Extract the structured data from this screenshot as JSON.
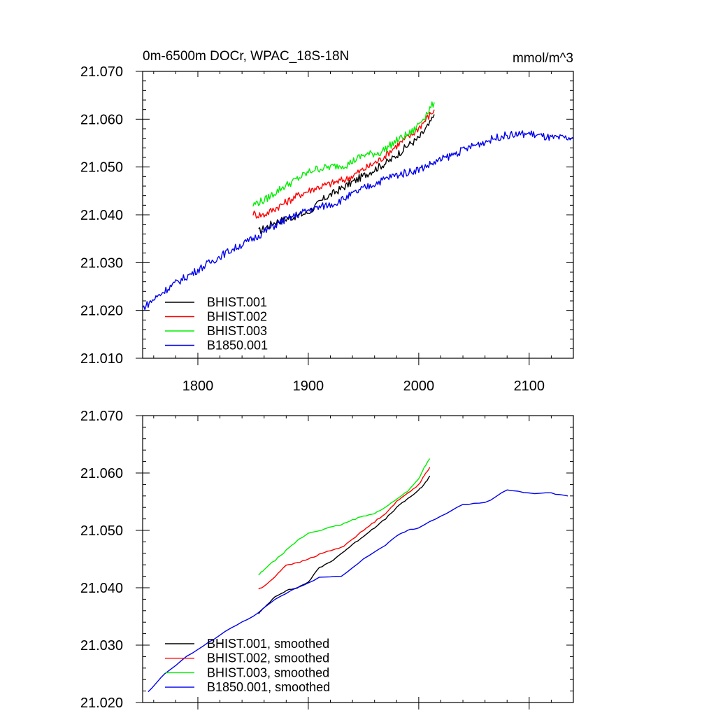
{
  "colors": {
    "BHIST.001": "#000000",
    "BHIST.002": "#ff0000",
    "BHIST.003": "#00ee00",
    "B1850.001": "#0000ee"
  },
  "chart_data": [
    {
      "type": "line",
      "title": "0m-6500m DOCr, WPAC_18S-18N",
      "units": "mmol/m^3",
      "xlim": [
        1750,
        2140
      ],
      "ylim": [
        21.01,
        21.07
      ],
      "xticks": [
        1800,
        1900,
        2000,
        2100
      ],
      "xtick_labels": [
        "1800",
        "1900",
        "2000",
        "2100"
      ],
      "yticks": [
        21.01,
        21.02,
        21.03,
        21.04,
        21.05,
        21.06,
        21.07
      ],
      "ytick_labels": [
        "21.010",
        "21.020",
        "21.030",
        "21.040",
        "21.050",
        "21.060",
        "21.070"
      ],
      "legend_position": "bottom-left",
      "series": [
        {
          "name": "BHIST.001",
          "x": [
            1855,
            1870,
            1885,
            1900,
            1915,
            1930,
            1945,
            1960,
            1975,
            1990,
            2000,
            2005,
            2010,
            2014
          ],
          "y": [
            21.0365,
            21.0385,
            21.0395,
            21.0405,
            21.0435,
            21.0455,
            21.0475,
            21.0495,
            21.0515,
            21.0545,
            21.056,
            21.0575,
            21.059,
            21.061
          ]
        },
        {
          "name": "BHIST.002",
          "x": [
            1850,
            1852,
            1860,
            1875,
            1890,
            1905,
            1920,
            1935,
            1950,
            1965,
            1980,
            1995,
            2005,
            2014
          ],
          "y": [
            21.0405,
            21.04,
            21.04,
            21.042,
            21.044,
            21.0455,
            21.0465,
            21.0475,
            21.0495,
            21.0515,
            21.0545,
            21.057,
            21.0595,
            21.062
          ]
        },
        {
          "name": "BHIST.003",
          "x": [
            1850,
            1853,
            1860,
            1875,
            1890,
            1905,
            1920,
            1935,
            1950,
            1965,
            1980,
            1995,
            2005,
            2014
          ],
          "y": [
            21.042,
            21.0425,
            21.043,
            21.0455,
            21.0475,
            21.0495,
            21.05,
            21.0505,
            21.0525,
            21.053,
            21.0555,
            21.0575,
            21.0605,
            21.0635
          ]
        },
        {
          "name": "B1850.001",
          "x": [
            1750,
            1775,
            1800,
            1825,
            1850,
            1875,
            1900,
            1925,
            1950,
            1975,
            2000,
            2025,
            2050,
            2075,
            2100,
            2120,
            2140
          ],
          "y": [
            21.0205,
            21.025,
            21.0285,
            21.032,
            21.035,
            21.0385,
            21.041,
            21.0425,
            21.0455,
            21.048,
            21.0495,
            21.052,
            21.0545,
            21.0565,
            21.057,
            21.056,
            21.056
          ]
        }
      ],
      "legend": [
        "BHIST.001",
        "BHIST.002",
        "BHIST.003",
        "B1850.001"
      ]
    },
    {
      "type": "line",
      "title": "",
      "xlim": [
        1750,
        2140
      ],
      "ylim": [
        21.02,
        21.07
      ],
      "xticks": [
        1800,
        1900,
        2000,
        2100
      ],
      "yticks": [
        21.02,
        21.03,
        21.04,
        21.05,
        21.06,
        21.07
      ],
      "ytick_labels": [
        "21.020",
        "21.030",
        "21.040",
        "21.050",
        "21.060",
        "21.070"
      ],
      "legend_position": "bottom-left",
      "series": [
        {
          "name": "BHIST.001, smoothed",
          "x": [
            1855,
            1860,
            1870,
            1880,
            1890,
            1900,
            1910,
            1920,
            1930,
            1940,
            1950,
            1960,
            1970,
            1980,
            1990,
            2000,
            2005,
            2010
          ],
          "y": [
            21.0355,
            21.0365,
            21.0385,
            21.0395,
            21.04,
            21.041,
            21.0435,
            21.0445,
            21.046,
            21.0475,
            21.049,
            21.0505,
            21.052,
            21.054,
            21.0555,
            21.057,
            21.058,
            21.0595
          ]
        },
        {
          "name": "BHIST.002, smoothed",
          "x": [
            1855,
            1860,
            1870,
            1880,
            1890,
            1900,
            1910,
            1920,
            1930,
            1940,
            1950,
            1960,
            1970,
            1980,
            1990,
            2000,
            2005,
            2010
          ],
          "y": [
            21.0398,
            21.0402,
            21.042,
            21.044,
            21.0443,
            21.045,
            21.0458,
            21.0465,
            21.047,
            21.0485,
            21.05,
            21.0515,
            21.053,
            21.055,
            21.0565,
            21.058,
            21.0595,
            21.061
          ]
        },
        {
          "name": "BHIST.003, smoothed",
          "x": [
            1855,
            1860,
            1870,
            1880,
            1890,
            1900,
            1910,
            1920,
            1930,
            1940,
            1950,
            1960,
            1970,
            1980,
            1990,
            2000,
            2005,
            2010
          ],
          "y": [
            21.0422,
            21.0432,
            21.0448,
            21.0465,
            21.0482,
            21.0495,
            21.05,
            21.0505,
            21.051,
            21.0518,
            21.0525,
            21.053,
            21.054,
            21.0555,
            21.0568,
            21.059,
            21.061,
            21.0625
          ]
        },
        {
          "name": "B1850.001, smoothed",
          "x": [
            1755,
            1770,
            1790,
            1810,
            1830,
            1850,
            1870,
            1890,
            1910,
            1930,
            1950,
            1970,
            1980,
            1990,
            2000,
            2020,
            2040,
            2060,
            2080,
            2100,
            2120,
            2135
          ],
          "y": [
            21.0218,
            21.025,
            21.028,
            21.0305,
            21.033,
            21.035,
            21.038,
            21.04,
            21.0418,
            21.042,
            21.045,
            21.0475,
            21.049,
            21.05,
            21.0505,
            21.0525,
            21.0545,
            21.0548,
            21.057,
            21.0565,
            21.0565,
            21.056
          ]
        }
      ],
      "legend": [
        "BHIST.001, smoothed",
        "BHIST.002, smoothed",
        "BHIST.003, smoothed",
        "B1850.001, smoothed"
      ]
    }
  ]
}
